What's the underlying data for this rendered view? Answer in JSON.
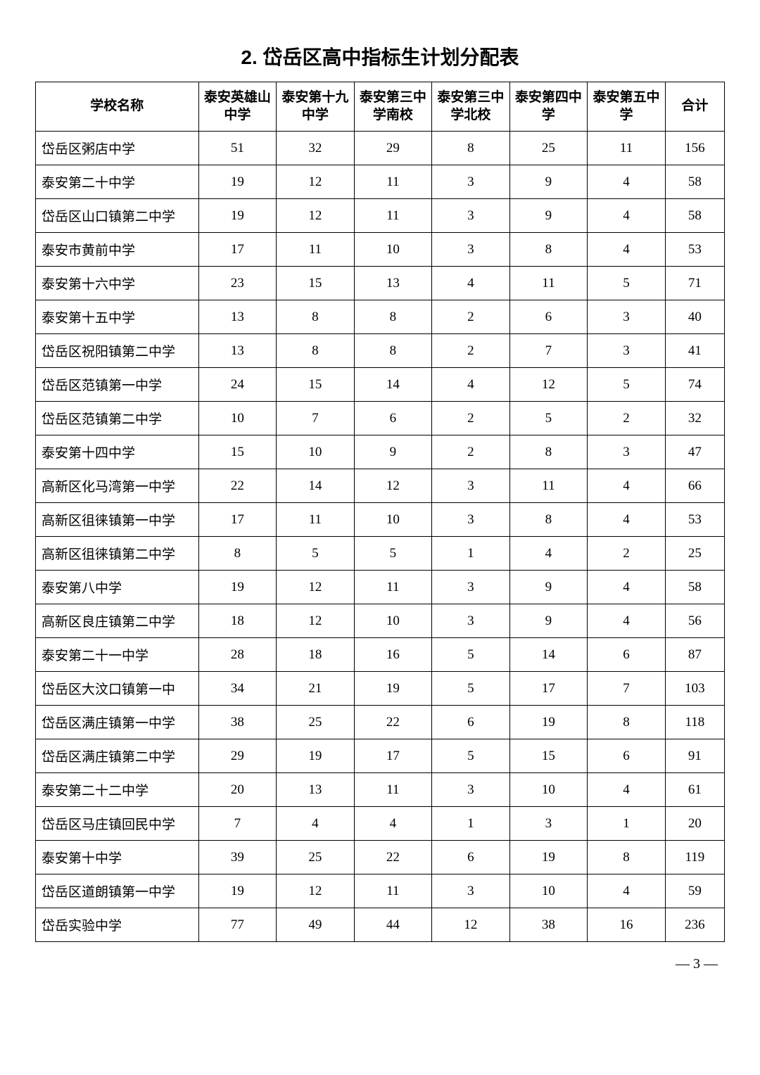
{
  "title": "2. 岱岳区高中指标生计划分配表",
  "headers": {
    "school": "学校名称",
    "col1": "泰安英雄山中学",
    "col2": "泰安第十九中学",
    "col3": "泰安第三中学南校",
    "col4": "泰安第三中学北校",
    "col5": "泰安第四中学",
    "col6": "泰安第五中学",
    "total": "合计"
  },
  "rows": [
    {
      "school": "岱岳区粥店中学",
      "c1": "51",
      "c2": "32",
      "c3": "29",
      "c4": "8",
      "c5": "25",
      "c6": "11",
      "total": "156"
    },
    {
      "school": "泰安第二十中学",
      "c1": "19",
      "c2": "12",
      "c3": "11",
      "c4": "3",
      "c5": "9",
      "c6": "4",
      "total": "58"
    },
    {
      "school": "岱岳区山口镇第二中学",
      "c1": "19",
      "c2": "12",
      "c3": "11",
      "c4": "3",
      "c5": "9",
      "c6": "4",
      "total": "58"
    },
    {
      "school": "泰安市黄前中学",
      "c1": "17",
      "c2": "11",
      "c3": "10",
      "c4": "3",
      "c5": "8",
      "c6": "4",
      "total": "53"
    },
    {
      "school": "泰安第十六中学",
      "c1": "23",
      "c2": "15",
      "c3": "13",
      "c4": "4",
      "c5": "11",
      "c6": "5",
      "total": "71"
    },
    {
      "school": "泰安第十五中学",
      "c1": "13",
      "c2": "8",
      "c3": "8",
      "c4": "2",
      "c5": "6",
      "c6": "3",
      "total": "40"
    },
    {
      "school": "岱岳区祝阳镇第二中学",
      "c1": "13",
      "c2": "8",
      "c3": "8",
      "c4": "2",
      "c5": "7",
      "c6": "3",
      "total": "41"
    },
    {
      "school": "岱岳区范镇第一中学",
      "c1": "24",
      "c2": "15",
      "c3": "14",
      "c4": "4",
      "c5": "12",
      "c6": "5",
      "total": "74"
    },
    {
      "school": "岱岳区范镇第二中学",
      "c1": "10",
      "c2": "7",
      "c3": "6",
      "c4": "2",
      "c5": "5",
      "c6": "2",
      "total": "32"
    },
    {
      "school": "泰安第十四中学",
      "c1": "15",
      "c2": "10",
      "c3": "9",
      "c4": "2",
      "c5": "8",
      "c6": "3",
      "total": "47"
    },
    {
      "school": "高新区化马湾第一中学",
      "c1": "22",
      "c2": "14",
      "c3": "12",
      "c4": "3",
      "c5": "11",
      "c6": "4",
      "total": "66"
    },
    {
      "school": "高新区徂徕镇第一中学",
      "c1": "17",
      "c2": "11",
      "c3": "10",
      "c4": "3",
      "c5": "8",
      "c6": "4",
      "total": "53"
    },
    {
      "school": "高新区徂徕镇第二中学",
      "c1": "8",
      "c2": "5",
      "c3": "5",
      "c4": "1",
      "c5": "4",
      "c6": "2",
      "total": "25"
    },
    {
      "school": "泰安第八中学",
      "c1": "19",
      "c2": "12",
      "c3": "11",
      "c4": "3",
      "c5": "9",
      "c6": "4",
      "total": "58"
    },
    {
      "school": "高新区良庄镇第二中学",
      "c1": "18",
      "c2": "12",
      "c3": "10",
      "c4": "3",
      "c5": "9",
      "c6": "4",
      "total": "56"
    },
    {
      "school": "泰安第二十一中学",
      "c1": "28",
      "c2": "18",
      "c3": "16",
      "c4": "5",
      "c5": "14",
      "c6": "6",
      "total": "87"
    },
    {
      "school": "岱岳区大汶口镇第一中",
      "c1": "34",
      "c2": "21",
      "c3": "19",
      "c4": "5",
      "c5": "17",
      "c6": "7",
      "total": "103"
    },
    {
      "school": "岱岳区满庄镇第一中学",
      "c1": "38",
      "c2": "25",
      "c3": "22",
      "c4": "6",
      "c5": "19",
      "c6": "8",
      "total": "118"
    },
    {
      "school": "岱岳区满庄镇第二中学",
      "c1": "29",
      "c2": "19",
      "c3": "17",
      "c4": "5",
      "c5": "15",
      "c6": "6",
      "total": "91"
    },
    {
      "school": "泰安第二十二中学",
      "c1": "20",
      "c2": "13",
      "c3": "11",
      "c4": "3",
      "c5": "10",
      "c6": "4",
      "total": "61"
    },
    {
      "school": "岱岳区马庄镇回民中学",
      "c1": "7",
      "c2": "4",
      "c3": "4",
      "c4": "1",
      "c5": "3",
      "c6": "1",
      "total": "20"
    },
    {
      "school": "泰安第十中学",
      "c1": "39",
      "c2": "25",
      "c3": "22",
      "c4": "6",
      "c5": "19",
      "c6": "8",
      "total": "119"
    },
    {
      "school": "岱岳区道朗镇第一中学",
      "c1": "19",
      "c2": "12",
      "c3": "11",
      "c4": "3",
      "c5": "10",
      "c6": "4",
      "total": "59"
    },
    {
      "school": "岱岳实验中学",
      "c1": "77",
      "c2": "49",
      "c3": "44",
      "c4": "12",
      "c5": "38",
      "c6": "16",
      "total": "236"
    }
  ],
  "pageNumber": "— 3 —"
}
